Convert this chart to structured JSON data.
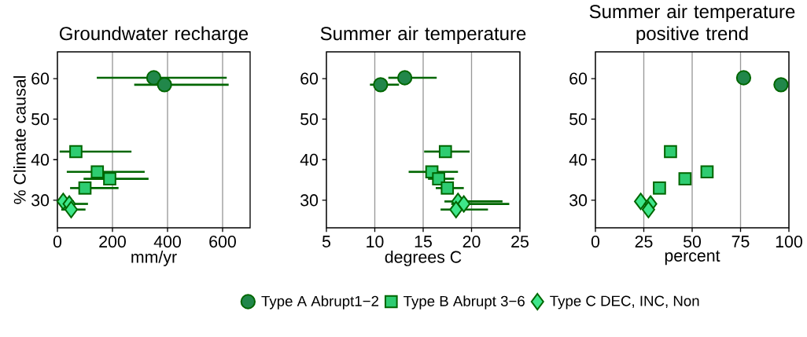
{
  "chart_data": [
    {
      "type": "scatter",
      "title": "Groundwater recharge",
      "xlabel": "mm/yr",
      "ylabel": "% Climate causal",
      "xlim": [
        0,
        700
      ],
      "xticks": [
        0,
        200,
        400,
        600
      ],
      "ylim": [
        23.2,
        66.6
      ],
      "yticks": [
        30,
        40,
        50,
        60
      ],
      "grid": "x",
      "series": [
        {
          "color": "#21874a",
          "marker": "circle",
          "x": [
            350,
            389
          ],
          "values": [
            60.2,
            58.5
          ],
          "xerrors": [
            [
              143,
              615
            ],
            [
              279,
              622
            ]
          ]
        },
        {
          "color": "#2ecc71",
          "marker": "square",
          "x": [
            67,
            145,
            190,
            100
          ],
          "values": [
            42.0,
            37.0,
            35.3,
            33.0
          ],
          "xerrors": [
            [
              8,
              269
            ],
            [
              34,
              317
            ],
            [
              95,
              331
            ],
            [
              46,
              222
            ]
          ]
        },
        {
          "color": "#3ee68a",
          "marker": "diamond",
          "x": [
            21,
            43,
            50
          ],
          "values": [
            29.7,
            29.1,
            27.7
          ],
          "xerrors": [
            [
              8,
              60
            ],
            [
              15,
              111
            ],
            [
              14,
              102
            ]
          ]
        }
      ]
    },
    {
      "type": "scatter",
      "title": "Summer air temperature",
      "xlabel": "degrees C",
      "xlim": [
        5,
        25
      ],
      "xticks": [
        5,
        10,
        15,
        20,
        25
      ],
      "ylim": [
        23.2,
        66.6
      ],
      "yticks": [
        30,
        40,
        50,
        60
      ],
      "grid": "x",
      "legend": "bottom",
      "series": [
        {
          "name": "Type A Abrupt1−2",
          "color": "#21874a",
          "marker": "circle",
          "x": [
            13.1,
            10.6
          ],
          "values": [
            60.2,
            58.5
          ],
          "xerrors": [
            [
              11.4,
              16.4
            ],
            [
              9.5,
              12.5
            ]
          ]
        },
        {
          "name": "Type B Abrupt 3−6",
          "color": "#2ecc71",
          "marker": "square",
          "x": [
            17.3,
            15.9,
            16.6,
            17.5
          ],
          "values": [
            42.0,
            37.0,
            35.3,
            33.0
          ],
          "xerrors": [
            [
              15.1,
              19.8
            ],
            [
              13.5,
              18.6
            ],
            [
              15.5,
              18.2
            ],
            [
              16.3,
              19.2
            ]
          ]
        },
        {
          "name": "Type C DEC, INC, Non",
          "color": "#3ee68a",
          "marker": "diamond",
          "x": [
            18.6,
            19.2,
            18.4
          ],
          "values": [
            29.7,
            29.1,
            27.7
          ],
          "xerrors": [
            [
              17.2,
              23.2
            ],
            [
              17.9,
              23.9
            ],
            [
              16.8,
              21.7
            ]
          ]
        }
      ]
    },
    {
      "type": "scatter",
      "title": "Summer air temperature positive trend",
      "xlabel": "percent",
      "xlim": [
        0,
        100
      ],
      "xticks": [
        0,
        25,
        50,
        75,
        100
      ],
      "ylim": [
        23.2,
        66.6
      ],
      "yticks": [
        30,
        40,
        50,
        60
      ],
      "grid": "x",
      "series": [
        {
          "color": "#21874a",
          "marker": "circle",
          "x": [
            76.6,
            95.9
          ],
          "values": [
            60.2,
            58.5
          ]
        },
        {
          "color": "#2ecc71",
          "marker": "square",
          "x": [
            38.8,
            57.7,
            46.3,
            33.1
          ],
          "values": [
            42.0,
            37.0,
            35.3,
            33.0
          ]
        },
        {
          "color": "#3ee68a",
          "marker": "diamond",
          "x": [
            23.4,
            28.5,
            27.4
          ],
          "values": [
            29.7,
            29.1,
            27.7
          ]
        }
      ]
    }
  ]
}
